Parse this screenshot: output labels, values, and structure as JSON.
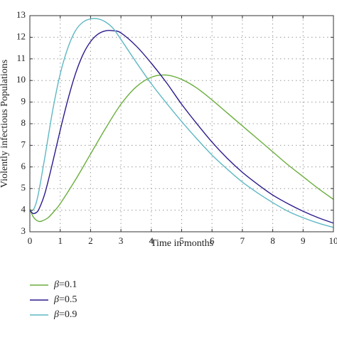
{
  "chart_data": {
    "type": "line",
    "xlabel": "Time in months",
    "ylabel": "Violently infectious Populations",
    "xlim": [
      0,
      10
    ],
    "ylim": [
      3,
      13
    ],
    "x_ticks": [
      "0",
      "1",
      "2",
      "3",
      "4",
      "5",
      "6",
      "7",
      "8",
      "9",
      "10"
    ],
    "y_ticks": [
      "3",
      "4",
      "5",
      "6",
      "7",
      "8",
      "9",
      "10",
      "11",
      "12",
      "13"
    ],
    "grid": true,
    "legend_position": "bottom-left",
    "series": [
      {
        "name": "β=0.1",
        "symbol": "β",
        "value_label": "=0.1",
        "color": "#6aae3c",
        "x": [
          0,
          0.1,
          0.2,
          0.3,
          0.4,
          0.6,
          0.8,
          1.0,
          1.5,
          2.0,
          2.5,
          3.0,
          3.5,
          4.0,
          4.5,
          5.0,
          5.5,
          6.0,
          6.5,
          7.0,
          7.5,
          8.0,
          8.5,
          9.0,
          9.5,
          10.0
        ],
        "y": [
          4.05,
          3.72,
          3.55,
          3.48,
          3.5,
          3.65,
          3.95,
          4.3,
          5.4,
          6.6,
          7.8,
          8.9,
          9.7,
          10.15,
          10.25,
          10.05,
          9.65,
          9.1,
          8.5,
          7.9,
          7.3,
          6.7,
          6.1,
          5.55,
          5.0,
          4.5
        ]
      },
      {
        "name": "β=0.5",
        "symbol": "β",
        "value_label": "=0.5",
        "color": "#2a1a8c",
        "x": [
          0,
          0.1,
          0.2,
          0.3,
          0.5,
          0.75,
          1.0,
          1.25,
          1.5,
          1.75,
          2.0,
          2.25,
          2.5,
          2.75,
          3.0,
          3.5,
          4.0,
          4.5,
          5.0,
          5.5,
          6.0,
          6.5,
          7.0,
          7.5,
          8.0,
          8.5,
          9.0,
          9.5,
          10.0
        ],
        "y": [
          4.0,
          3.85,
          3.88,
          4.05,
          4.8,
          6.2,
          7.7,
          9.1,
          10.3,
          11.2,
          11.8,
          12.15,
          12.3,
          12.3,
          12.2,
          11.6,
          10.8,
          9.9,
          8.9,
          8.0,
          7.15,
          6.4,
          5.75,
          5.2,
          4.7,
          4.3,
          3.95,
          3.65,
          3.4
        ]
      },
      {
        "name": "β=0.9",
        "symbol": "β",
        "value_label": "=0.9",
        "color": "#5fb8c4",
        "x": [
          0,
          0.1,
          0.2,
          0.3,
          0.5,
          0.75,
          1.0,
          1.25,
          1.5,
          1.75,
          2.0,
          2.25,
          2.5,
          2.75,
          3.0,
          3.5,
          4.0,
          4.5,
          5.0,
          5.5,
          6.0,
          6.5,
          7.0,
          7.5,
          8.0,
          8.5,
          9.0,
          9.5,
          10.0
        ],
        "y": [
          4.0,
          4.0,
          4.3,
          4.9,
          6.5,
          8.6,
          10.3,
          11.5,
          12.3,
          12.7,
          12.85,
          12.85,
          12.7,
          12.4,
          11.9,
          10.85,
          9.85,
          8.95,
          8.1,
          7.3,
          6.55,
          5.9,
          5.3,
          4.8,
          4.35,
          3.95,
          3.65,
          3.4,
          3.2
        ]
      }
    ]
  }
}
